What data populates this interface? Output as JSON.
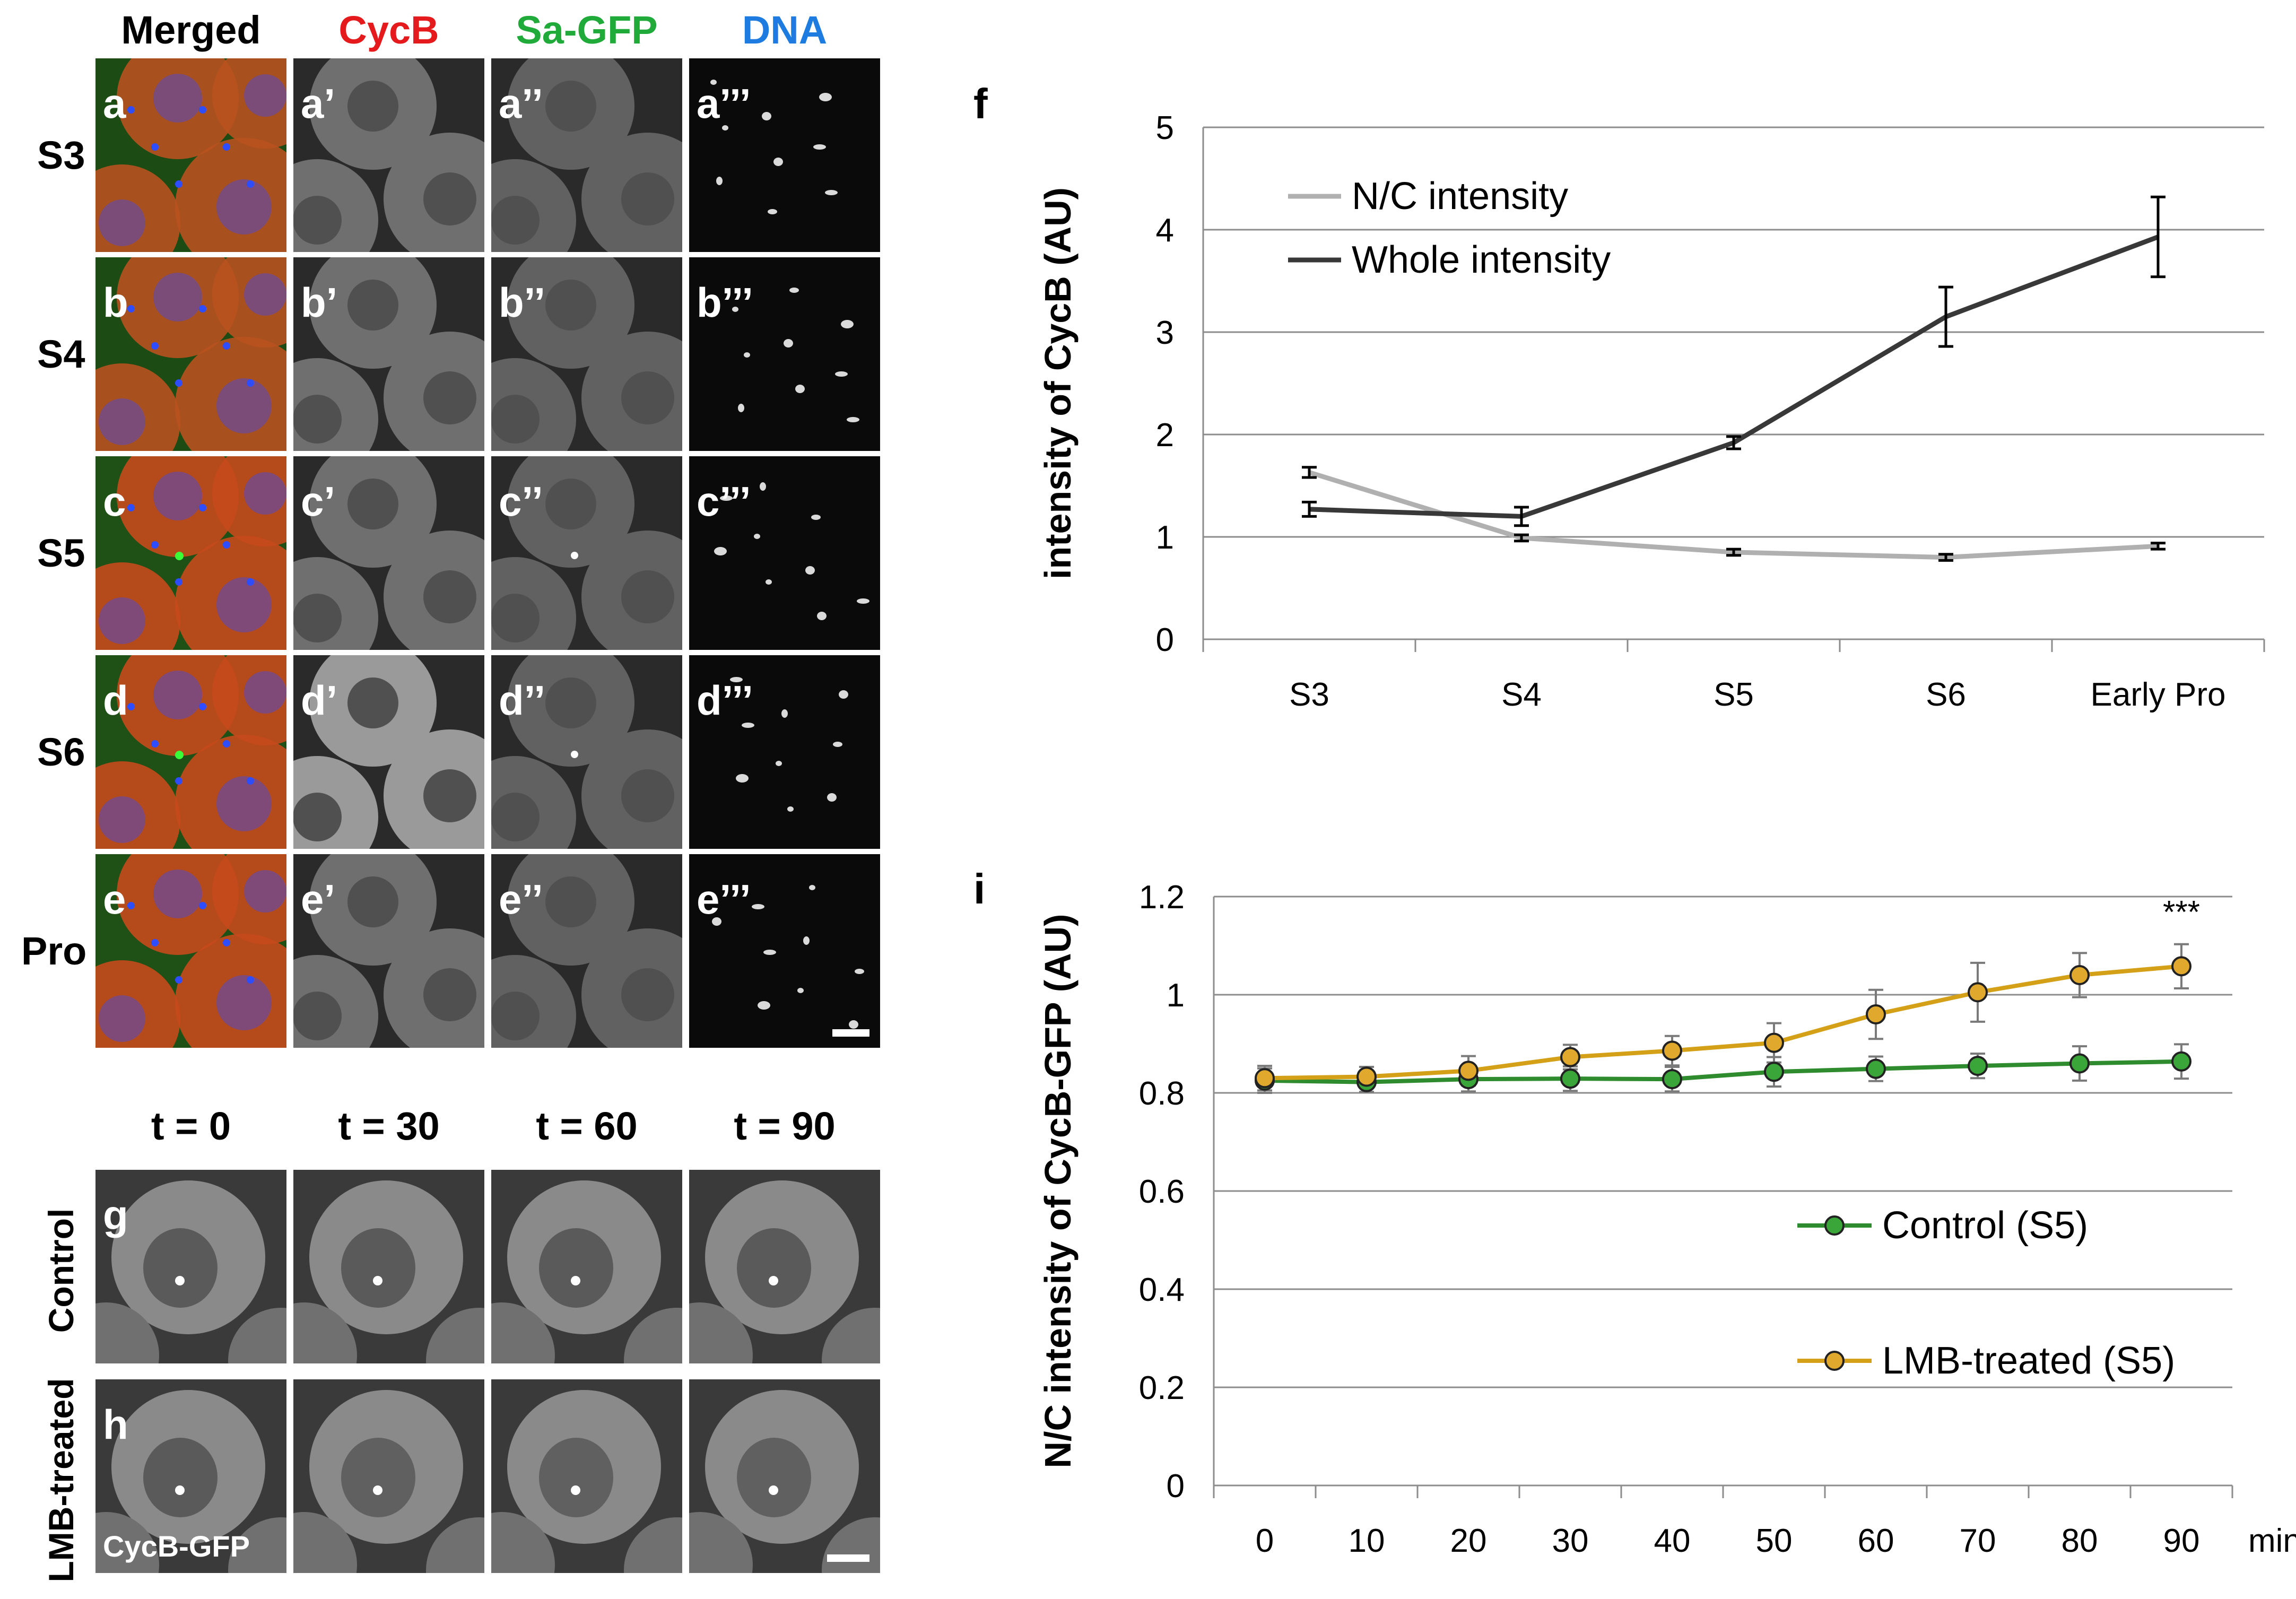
{
  "figure": {
    "column_headers": [
      {
        "text": "Merged",
        "color": "#000000"
      },
      {
        "text": "CycB",
        "color": "#e41a1c"
      },
      {
        "text": "Sa-GFP",
        "color": "#1faa3a"
      },
      {
        "text": "DNA",
        "color": "#1e7be0"
      }
    ],
    "rows": [
      {
        "stage": "S3",
        "labels": [
          "a",
          "a’",
          "a’’",
          "a’’’"
        ]
      },
      {
        "stage": "S4",
        "labels": [
          "b",
          "b’",
          "b’’",
          "b’’’"
        ]
      },
      {
        "stage": "S5",
        "labels": [
          "c",
          "c’",
          "c’’",
          "c’’’"
        ]
      },
      {
        "stage": "S6",
        "labels": [
          "d",
          "d’",
          "d’’",
          "d’’’"
        ]
      },
      {
        "stage": "Pro",
        "labels": [
          "e",
          "e’",
          "e’’",
          "e’’’"
        ]
      }
    ],
    "timelapse": {
      "time_headers": [
        "t = 0",
        "t = 30",
        "t = 60",
        "t = 90"
      ],
      "rows": [
        {
          "side_label": "Control",
          "panel_label": "g"
        },
        {
          "side_label": "LMB-treated",
          "panel_label": "h",
          "overlay": "CycB-GFP"
        }
      ]
    }
  },
  "chart_data": [
    {
      "panel": "f",
      "type": "line",
      "title": "",
      "xlabel": "",
      "ylabel": "intensity of CycB (AU)",
      "categories": [
        "S3",
        "S4",
        "S5",
        "S6",
        "Early Pro"
      ],
      "ylim": [
        0,
        5
      ],
      "yticks": [
        "0",
        "1",
        "2",
        "3",
        "4",
        "5"
      ],
      "grid": true,
      "legend_position": "top-left",
      "series": [
        {
          "name": "N/C intensity",
          "color": "#b0b0b0",
          "values": [
            1.63,
            0.99,
            0.85,
            0.8,
            0.91
          ],
          "errors": [
            0.05,
            0.03,
            0.03,
            0.03,
            0.03
          ]
        },
        {
          "name": "Whole intensity",
          "color": "#383838",
          "values": [
            1.27,
            1.2,
            1.92,
            3.15,
            3.93
          ],
          "errors": [
            0.07,
            0.09,
            0.06,
            0.29,
            0.39
          ]
        }
      ]
    },
    {
      "panel": "i",
      "type": "line",
      "title": "",
      "xlabel": "min",
      "ylabel": "N/C intensity of CycB-GFP (AU)",
      "categories": [
        "0",
        "10",
        "20",
        "30",
        "40",
        "50",
        "60",
        "70",
        "80",
        "90"
      ],
      "ylim": [
        0,
        1.2
      ],
      "yticks": [
        "0",
        "0.2",
        "0.4",
        "0.6",
        "0.8",
        "1",
        "1.2"
      ],
      "grid": true,
      "legend_position": "bottom-right",
      "annotation": {
        "text": "***",
        "at": "90"
      },
      "series": [
        {
          "name": "Control (S5)",
          "color": "#2e8b2e",
          "marker_fill": "#3aa63a",
          "values": [
            0.825,
            0.822,
            0.828,
            0.829,
            0.828,
            0.843,
            0.849,
            0.855,
            0.86,
            0.864
          ],
          "errors": [
            0.025,
            0.02,
            0.025,
            0.025,
            0.025,
            0.03,
            0.025,
            0.025,
            0.035,
            0.035
          ]
        },
        {
          "name": "LMB-treated (S5)",
          "color": "#d4a017",
          "marker_fill": "#e0a92e",
          "values": [
            0.83,
            0.833,
            0.845,
            0.873,
            0.886,
            0.902,
            0.96,
            1.005,
            1.04,
            1.058
          ],
          "errors": [
            0.025,
            0.02,
            0.03,
            0.025,
            0.03,
            0.04,
            0.05,
            0.06,
            0.045,
            0.045
          ]
        }
      ]
    }
  ]
}
